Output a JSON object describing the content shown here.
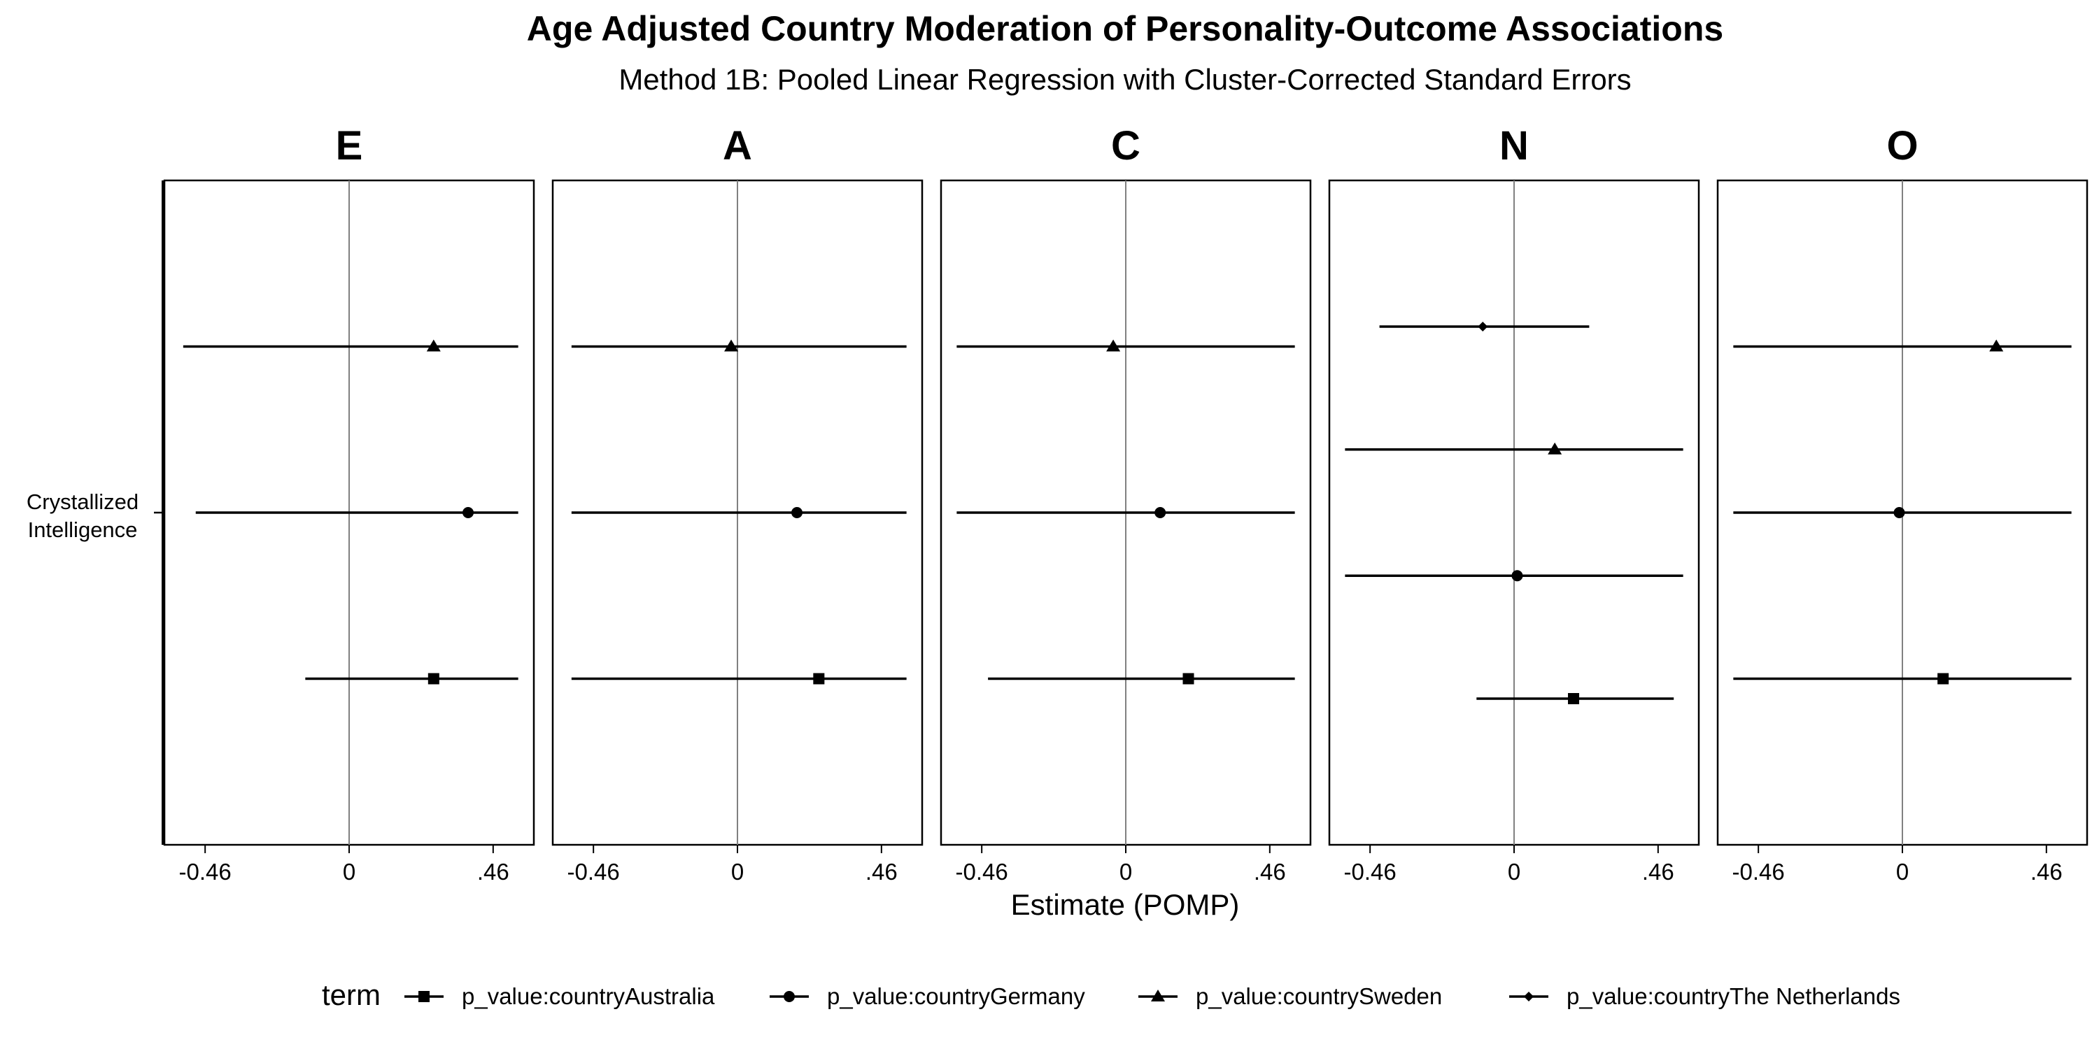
{
  "title": "Age Adjusted Country Moderation of Personality-Outcome Associations",
  "subtitle": "Method 1B: Pooled Linear Regression with Cluster-Corrected Standard Errors",
  "chart_data": {
    "type": "forest",
    "xlabel": "Estimate (POMP)",
    "xlim": [
      -0.59,
      0.59
    ],
    "x_ticks": [
      -0.46,
      0,
      0.46
    ],
    "x_tick_labels": [
      "-0.46",
      "0",
      ".46"
    ],
    "reference_line_x": 0,
    "y_category": [
      "Crystallized",
      "Intelligence"
    ],
    "grid": false,
    "legend": {
      "title": "term",
      "position": "bottom",
      "entries": [
        {
          "label": "p_value:countryAustralia",
          "shape": "square"
        },
        {
          "label": "p_value:countryGermany",
          "shape": "circle"
        },
        {
          "label": "p_value:countrySweden",
          "shape": "triangle"
        },
        {
          "label": "p_value:countryThe Netherlands",
          "shape": "diamond"
        }
      ]
    },
    "panels": [
      {
        "facet": "E",
        "series": [
          {
            "term": "p_value:countrySweden",
            "estimate": 0.27,
            "lo": -0.53,
            "hi": 0.54
          },
          {
            "term": "p_value:countryGermany",
            "estimate": 0.38,
            "lo": -0.49,
            "hi": 0.54
          },
          {
            "term": "p_value:countryAustralia",
            "estimate": 0.27,
            "lo": -0.14,
            "hi": 0.54
          }
        ]
      },
      {
        "facet": "A",
        "series": [
          {
            "term": "p_value:countrySweden",
            "estimate": -0.02,
            "lo": -0.53,
            "hi": 0.54
          },
          {
            "term": "p_value:countryGermany",
            "estimate": 0.19,
            "lo": -0.53,
            "hi": 0.54
          },
          {
            "term": "p_value:countryAustralia",
            "estimate": 0.26,
            "lo": -0.53,
            "hi": 0.54
          }
        ]
      },
      {
        "facet": "C",
        "series": [
          {
            "term": "p_value:countrySweden",
            "estimate": -0.04,
            "lo": -0.54,
            "hi": 0.54
          },
          {
            "term": "p_value:countryGermany",
            "estimate": 0.11,
            "lo": -0.54,
            "hi": 0.54
          },
          {
            "term": "p_value:countryAustralia",
            "estimate": 0.2,
            "lo": -0.44,
            "hi": 0.54
          }
        ]
      },
      {
        "facet": "N",
        "series": [
          {
            "term": "p_value:countryThe Netherlands",
            "estimate": -0.1,
            "lo": -0.43,
            "hi": 0.24
          },
          {
            "term": "p_value:countrySweden",
            "estimate": 0.13,
            "lo": -0.54,
            "hi": 0.54
          },
          {
            "term": "p_value:countryGermany",
            "estimate": 0.01,
            "lo": -0.54,
            "hi": 0.54
          },
          {
            "term": "p_value:countryAustralia",
            "estimate": 0.19,
            "lo": -0.12,
            "hi": 0.51
          }
        ]
      },
      {
        "facet": "O",
        "series": [
          {
            "term": "p_value:countrySweden",
            "estimate": 0.3,
            "lo": -0.54,
            "hi": 0.54
          },
          {
            "term": "p_value:countryGermany",
            "estimate": -0.01,
            "lo": -0.54,
            "hi": 0.54
          },
          {
            "term": "p_value:countryAustralia",
            "estimate": 0.13,
            "lo": -0.54,
            "hi": 0.54
          }
        ]
      }
    ]
  }
}
